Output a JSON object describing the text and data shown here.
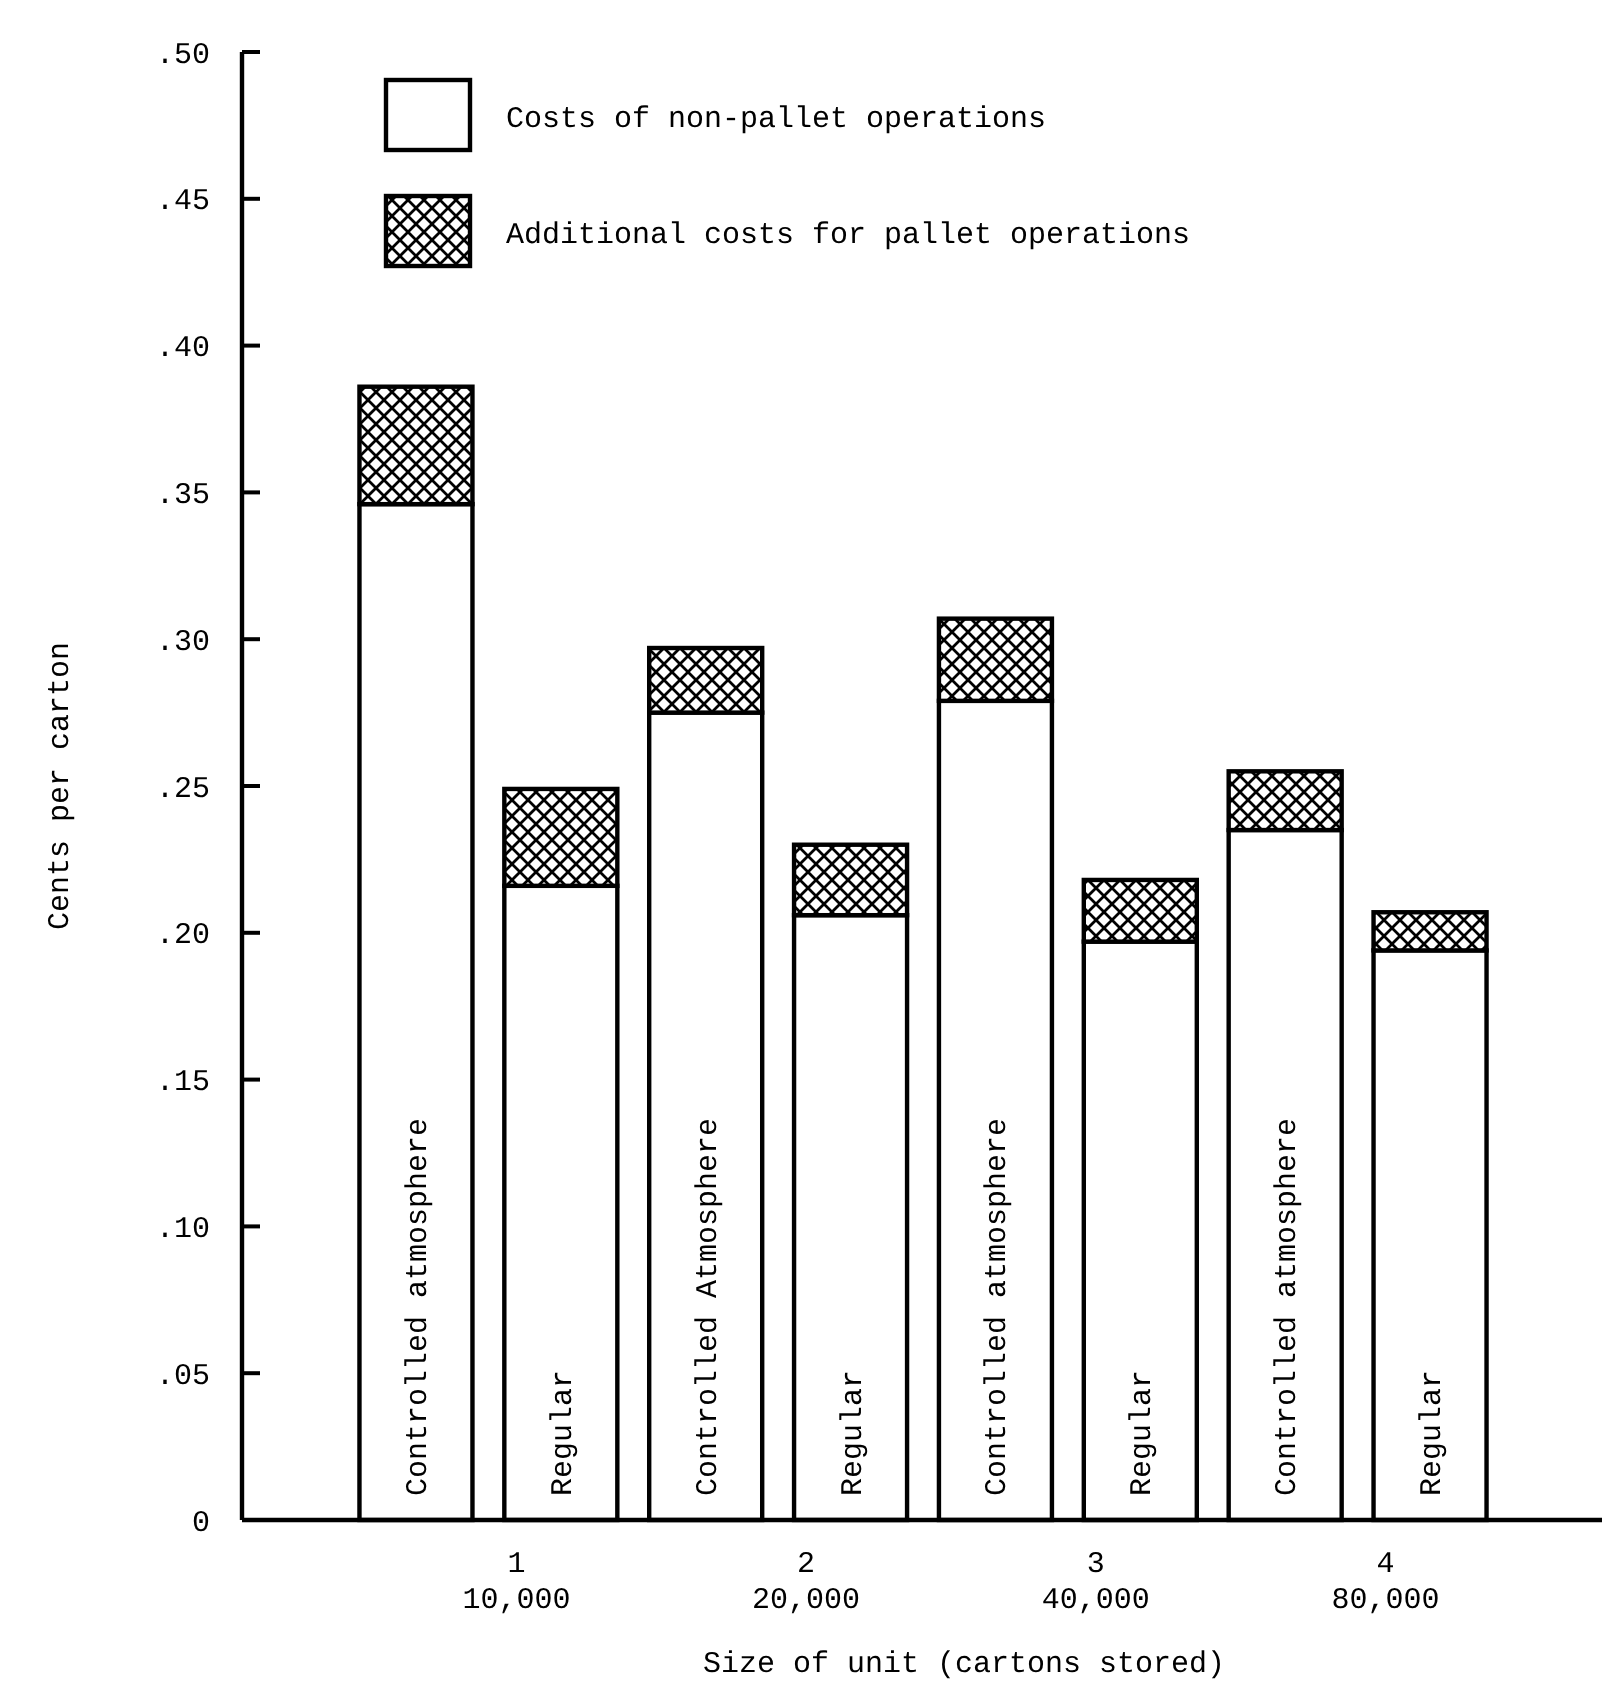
{
  "chart_data": {
    "type": "bar",
    "stacked": true,
    "xlabel": "Size of unit (cartons stored)",
    "ylabel": "Cents per carton",
    "categories": [
      "Controlled atmosphere",
      "Regular",
      "Controlled Atmosphere",
      "Regular",
      "Controlled atmosphere",
      "Regular",
      "Controlled atmosphere",
      "Regular"
    ],
    "series": [
      {
        "name": "Costs of non-pallet operations",
        "color": "#ffffff",
        "values": [
          0.346,
          0.216,
          0.275,
          0.206,
          0.279,
          0.197,
          0.235,
          0.194
        ]
      },
      {
        "name": "Additional costs for pallet operations",
        "color": "#000000",
        "values": [
          0.04,
          0.033,
          0.022,
          0.024,
          0.028,
          0.021,
          0.02,
          0.013
        ]
      }
    ],
    "ylim": [
      0,
      0.5
    ],
    "yticks": [
      0,
      {
        "value": 0.05,
        "label": ".05"
      },
      {
        "value": 0.1,
        "label": ".10"
      },
      {
        "value": 0.15,
        "label": ".15"
      },
      {
        "value": 0.2,
        "label": ".20"
      },
      {
        "value": 0.25,
        "label": ".25"
      },
      {
        "value": 0.3,
        "label": ".30"
      },
      {
        "value": 0.35,
        "label": ".35"
      },
      {
        "value": 0.4,
        "label": ".40"
      },
      {
        "value": 0.45,
        "label": ".45"
      },
      {
        "value": 0.5,
        "label": ".50"
      }
    ],
    "annotations": [
      "1\n10,000",
      "2\n20,000",
      "3\n40,000",
      "4\n80,000"
    ],
    "legend": "top left",
    "grid": false
  }
}
